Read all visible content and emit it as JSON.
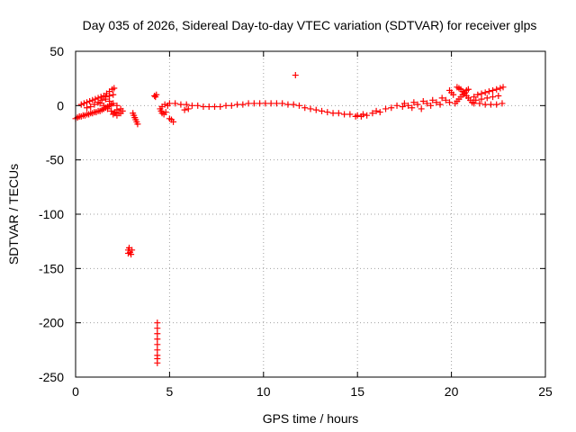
{
  "chart_data": {
    "type": "scatter",
    "title": "Day 035 of 2026, Sidereal Day-to-day VTEC variation (SDTVAR) for receiver glps",
    "xlabel": "GPS time / hours",
    "ylabel": "SDTVAR / TECUs",
    "xlim": [
      0,
      25
    ],
    "ylim": [
      -250,
      50
    ],
    "xticks": [
      0,
      5,
      10,
      15,
      20,
      25
    ],
    "xtick_labels": [
      "0",
      "5",
      "10",
      "15",
      "20",
      "25"
    ],
    "yticks": [
      50,
      0,
      -50,
      -100,
      -150,
      -200,
      -250
    ],
    "ytick_labels": [
      "50",
      "0",
      "-50",
      "-100",
      "-150",
      "-200",
      "-250"
    ],
    "grid": true,
    "marker": "+",
    "series": [
      {
        "name": "SDTVAR",
        "color": "#ff0000",
        "points": [
          [
            0.0,
            -12
          ],
          [
            0.1,
            -11
          ],
          [
            0.2,
            -10
          ],
          [
            0.3,
            -10
          ],
          [
            0.4,
            -9
          ],
          [
            0.5,
            -9
          ],
          [
            0.6,
            -8
          ],
          [
            0.7,
            -8
          ],
          [
            0.8,
            -7
          ],
          [
            0.9,
            -7
          ],
          [
            1.0,
            -6
          ],
          [
            1.1,
            -6
          ],
          [
            1.2,
            -5
          ],
          [
            1.3,
            -5
          ],
          [
            1.4,
            -4
          ],
          [
            1.5,
            -3
          ],
          [
            1.6,
            -2
          ],
          [
            1.7,
            -1
          ],
          [
            1.8,
            0
          ],
          [
            1.9,
            1
          ],
          [
            2.0,
            -8
          ],
          [
            2.1,
            -6
          ],
          [
            2.2,
            -4
          ],
          [
            2.3,
            -7
          ],
          [
            0.3,
            1
          ],
          [
            0.45,
            2
          ],
          [
            0.6,
            3
          ],
          [
            0.75,
            4
          ],
          [
            0.9,
            5
          ],
          [
            1.05,
            6
          ],
          [
            1.2,
            7
          ],
          [
            1.35,
            8
          ],
          [
            1.5,
            9
          ],
          [
            1.65,
            11
          ],
          [
            1.8,
            13
          ],
          [
            1.95,
            15
          ],
          [
            2.05,
            16
          ],
          [
            0.6,
            -2
          ],
          [
            0.8,
            -1
          ],
          [
            1.0,
            1
          ],
          [
            1.2,
            3
          ],
          [
            1.4,
            5
          ],
          [
            1.6,
            8
          ],
          [
            1.8,
            9
          ],
          [
            2.0,
            10
          ],
          [
            1.3,
            2
          ],
          [
            1.5,
            0
          ],
          [
            1.7,
            -3
          ],
          [
            1.9,
            -5
          ],
          [
            2.1,
            -7
          ],
          [
            2.2,
            -9
          ],
          [
            2.4,
            -7
          ],
          [
            1.6,
            6
          ],
          [
            1.8,
            4
          ],
          [
            2.0,
            2
          ],
          [
            2.2,
            0
          ],
          [
            2.4,
            -3
          ],
          [
            2.5,
            -5
          ],
          [
            2.8,
            -133
          ],
          [
            2.85,
            -131
          ],
          [
            2.9,
            -135
          ],
          [
            3.0,
            -133
          ],
          [
            2.95,
            -137
          ],
          [
            2.8,
            -136
          ],
          [
            3.05,
            -7
          ],
          [
            3.1,
            -9
          ],
          [
            3.15,
            -11
          ],
          [
            3.2,
            -13
          ],
          [
            3.25,
            -15
          ],
          [
            3.3,
            -17
          ],
          [
            4.2,
            9
          ],
          [
            4.3,
            10
          ],
          [
            4.25,
            8
          ],
          [
            4.35,
            -200
          ],
          [
            4.35,
            -205
          ],
          [
            4.35,
            -210
          ],
          [
            4.35,
            -215
          ],
          [
            4.35,
            -220
          ],
          [
            4.35,
            -225
          ],
          [
            4.35,
            -230
          ],
          [
            4.35,
            -233
          ],
          [
            4.35,
            -237
          ],
          [
            4.5,
            -3
          ],
          [
            4.55,
            -5
          ],
          [
            4.6,
            -7
          ],
          [
            4.7,
            -8
          ],
          [
            4.8,
            -6
          ],
          [
            4.6,
            -1
          ],
          [
            4.75,
            1
          ],
          [
            4.9,
            0
          ],
          [
            5.0,
            -12
          ],
          [
            5.1,
            -13
          ],
          [
            5.2,
            -15
          ],
          [
            5.0,
            2
          ],
          [
            5.3,
            2
          ],
          [
            5.6,
            1
          ],
          [
            5.9,
            1
          ],
          [
            6.2,
            0
          ],
          [
            6.5,
            0
          ],
          [
            5.8,
            -4
          ],
          [
            6.0,
            -3
          ],
          [
            6.8,
            -1
          ],
          [
            7.1,
            -1
          ],
          [
            7.4,
            -1
          ],
          [
            7.7,
            -1
          ],
          [
            8.0,
            0
          ],
          [
            8.3,
            0
          ],
          [
            8.6,
            1
          ],
          [
            8.9,
            1
          ],
          [
            9.2,
            2
          ],
          [
            9.5,
            2
          ],
          [
            9.8,
            2
          ],
          [
            10.1,
            2
          ],
          [
            10.4,
            2
          ],
          [
            10.7,
            2
          ],
          [
            11.0,
            2
          ],
          [
            11.3,
            1
          ],
          [
            11.6,
            1
          ],
          [
            11.9,
            0
          ],
          [
            11.7,
            28
          ],
          [
            12.2,
            -2
          ],
          [
            12.5,
            -3
          ],
          [
            12.8,
            -4
          ],
          [
            13.1,
            -5
          ],
          [
            13.4,
            -6
          ],
          [
            13.7,
            -7
          ],
          [
            14.0,
            -7
          ],
          [
            14.3,
            -8
          ],
          [
            14.6,
            -8
          ],
          [
            14.9,
            -10
          ],
          [
            15.0,
            -9
          ],
          [
            15.2,
            -10
          ],
          [
            15.3,
            -8
          ],
          [
            15.5,
            -9
          ],
          [
            15.8,
            -7
          ],
          [
            16.0,
            -5
          ],
          [
            16.2,
            -6
          ],
          [
            16.5,
            -3
          ],
          [
            16.8,
            -2
          ],
          [
            17.1,
            0
          ],
          [
            17.4,
            -1
          ],
          [
            17.5,
            2
          ],
          [
            17.7,
            0
          ],
          [
            17.9,
            -2
          ],
          [
            18.0,
            3
          ],
          [
            18.2,
            1
          ],
          [
            18.4,
            -3
          ],
          [
            18.5,
            4
          ],
          [
            18.7,
            2
          ],
          [
            18.9,
            0
          ],
          [
            19.0,
            5
          ],
          [
            19.2,
            3
          ],
          [
            19.4,
            1
          ],
          [
            19.5,
            7
          ],
          [
            19.7,
            5
          ],
          [
            19.9,
            3
          ],
          [
            20.0,
            12
          ],
          [
            19.9,
            14
          ],
          [
            20.1,
            10
          ],
          [
            20.2,
            2
          ],
          [
            20.3,
            4
          ],
          [
            20.4,
            6
          ],
          [
            20.5,
            8
          ],
          [
            20.6,
            10
          ],
          [
            20.7,
            12
          ],
          [
            20.8,
            14
          ],
          [
            20.9,
            15
          ],
          [
            20.3,
            17
          ],
          [
            20.4,
            16
          ],
          [
            20.5,
            15
          ],
          [
            20.6,
            13
          ],
          [
            20.7,
            11
          ],
          [
            20.8,
            9
          ],
          [
            20.9,
            7
          ],
          [
            21.0,
            5
          ],
          [
            21.1,
            3
          ],
          [
            21.2,
            8
          ],
          [
            21.4,
            10
          ],
          [
            21.6,
            11
          ],
          [
            21.8,
            12
          ],
          [
            22.0,
            13
          ],
          [
            22.2,
            14
          ],
          [
            22.4,
            15
          ],
          [
            22.6,
            16
          ],
          [
            22.75,
            17
          ],
          [
            21.2,
            2
          ],
          [
            21.5,
            2
          ],
          [
            21.8,
            1
          ],
          [
            22.1,
            1
          ],
          [
            22.4,
            1
          ],
          [
            22.7,
            2
          ],
          [
            21.3,
            5
          ],
          [
            21.6,
            6
          ],
          [
            21.9,
            7
          ],
          [
            22.2,
            8
          ],
          [
            22.5,
            9
          ]
        ]
      }
    ]
  }
}
